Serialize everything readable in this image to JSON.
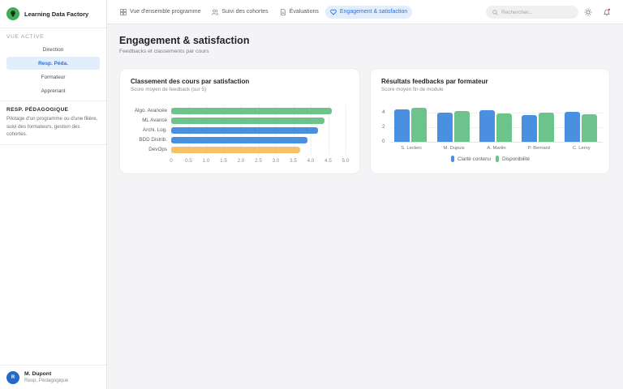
{
  "app": {
    "name": "Learning Data Factory"
  },
  "sidebar": {
    "section_label": "VUE ACTIVE",
    "views": [
      {
        "label": "Direction",
        "active": false
      },
      {
        "label": "Resp. Péda.",
        "active": true
      },
      {
        "label": "Formateur",
        "active": false
      },
      {
        "label": "Apprenant",
        "active": false
      }
    ],
    "role": {
      "title": "RESP. PÉDAGOGIQUE",
      "description": "Pilotage d'un programme ou d'une filière, suivi des formateurs, gestion des cohortes."
    },
    "user": {
      "initial": "R",
      "name": "M. Dupont",
      "role": "Resp. Pédagogique"
    }
  },
  "topbar": {
    "tabs": [
      {
        "label": "Vue d'ensemble programme",
        "icon": "grid-icon",
        "active": false
      },
      {
        "label": "Suivi des cohortes",
        "icon": "users-icon",
        "active": false
      },
      {
        "label": "Évaluations",
        "icon": "document-icon",
        "active": false
      },
      {
        "label": "Engagement & satisfaction",
        "icon": "heart-icon",
        "active": true
      }
    ],
    "search_placeholder": "Rechercher...",
    "icons": [
      "sun-icon",
      "bell-icon"
    ]
  },
  "page": {
    "title": "Engagement & satisfaction",
    "subtitle": "Feedbacks et classements par cours"
  },
  "colors": {
    "blue": "#4a8fe0",
    "green": "#6cc48c",
    "orange": "#f7c16a",
    "accent": "#2f6fd6"
  },
  "chart_data": [
    {
      "type": "bar",
      "orientation": "horizontal",
      "title": "Classement des cours par satisfaction",
      "subtitle": "Score moyen de feedback (sur 5)",
      "categories": [
        "Algo. Avancée",
        "ML Avancé",
        "Archi. Log.",
        "BDD Distrib.",
        "DevOps"
      ],
      "values": [
        4.6,
        4.4,
        4.2,
        3.9,
        3.7
      ],
      "bar_colors": [
        "#6cc48c",
        "#6cc48c",
        "#4a8fe0",
        "#4a8fe0",
        "#f7c16a"
      ],
      "xticks": [
        "0",
        "0.5",
        "1.0",
        "1.5",
        "2.0",
        "2.5",
        "3.0",
        "3.5",
        "4.0",
        "4.5",
        "5.0"
      ],
      "xlim": [
        0,
        5
      ],
      "grid": true
    },
    {
      "type": "bar",
      "orientation": "vertical",
      "title": "Résultats feedbacks par formateur",
      "subtitle": "Score moyen fin de module",
      "categories": [
        "S. Leclerc",
        "M. Dupuis",
        "A. Martin",
        "P. Bernard",
        "C. Leroy"
      ],
      "series": [
        {
          "name": "Clarté contenu",
          "color": "#4a8fe0",
          "values": [
            4.5,
            4.0,
            4.3,
            3.7,
            4.1
          ]
        },
        {
          "name": "Disponibilité",
          "color": "#6cc48c",
          "values": [
            4.7,
            4.2,
            3.9,
            4.0,
            3.8
          ]
        }
      ],
      "yticks": [
        "0",
        "2",
        "4"
      ],
      "ylim": [
        0,
        5
      ],
      "legend_position": "bottom",
      "grid": true
    }
  ]
}
